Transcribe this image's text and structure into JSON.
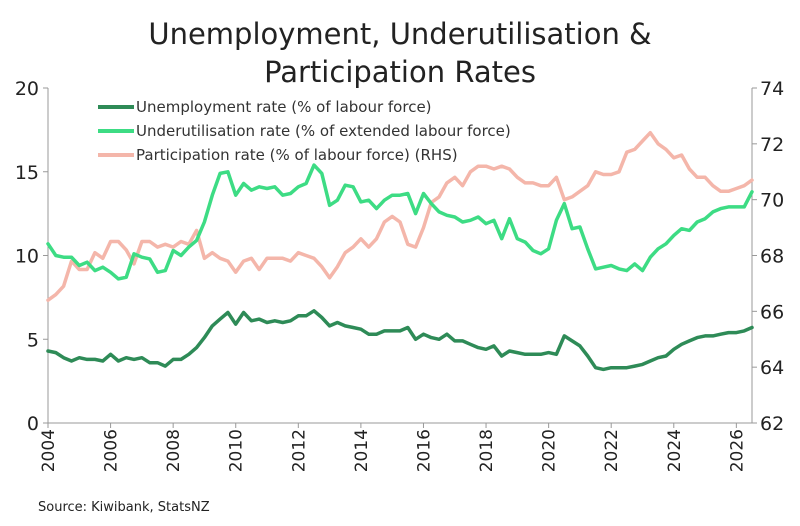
{
  "chart_data": {
    "type": "line",
    "title_lines": [
      "Unemployment, Underutilisation &",
      "Participation Rates"
    ],
    "source": "Source:  Kiwibank, StatsNZ",
    "x_ticks": [
      "2004",
      "2006",
      "2008",
      "2010",
      "2012",
      "2014",
      "2016",
      "2018",
      "2020",
      "2022",
      "2024",
      "2026"
    ],
    "xlim": [
      2004,
      2026.5
    ],
    "y_left": {
      "lim": [
        0,
        20
      ],
      "ticks": [
        "0",
        "5",
        "10",
        "15",
        "20"
      ]
    },
    "y_right": {
      "lim": [
        62,
        74
      ],
      "ticks": [
        "62",
        "64",
        "66",
        "68",
        "70",
        "72",
        "74"
      ]
    },
    "grid": false,
    "legend_position": "top-left",
    "series": [
      {
        "name": "Unemployment rate (% of labour force)",
        "color": "#2e8b57",
        "axis": "left",
        "points": [
          [
            2004.0,
            4.3
          ],
          [
            2004.25,
            4.2
          ],
          [
            2004.5,
            3.9
          ],
          [
            2004.75,
            3.7
          ],
          [
            2005.0,
            3.9
          ],
          [
            2005.25,
            3.8
          ],
          [
            2005.5,
            3.8
          ],
          [
            2005.75,
            3.7
          ],
          [
            2006.0,
            4.1
          ],
          [
            2006.25,
            3.7
          ],
          [
            2006.5,
            3.9
          ],
          [
            2006.75,
            3.8
          ],
          [
            2007.0,
            3.9
          ],
          [
            2007.25,
            3.6
          ],
          [
            2007.5,
            3.6
          ],
          [
            2007.75,
            3.4
          ],
          [
            2008.0,
            3.8
          ],
          [
            2008.25,
            3.8
          ],
          [
            2008.5,
            4.1
          ],
          [
            2008.75,
            4.5
          ],
          [
            2009.0,
            5.1
          ],
          [
            2009.25,
            5.8
          ],
          [
            2009.5,
            6.2
          ],
          [
            2009.75,
            6.6
          ],
          [
            2010.0,
            5.9
          ],
          [
            2010.25,
            6.6
          ],
          [
            2010.5,
            6.1
          ],
          [
            2010.75,
            6.2
          ],
          [
            2011.0,
            6.0
          ],
          [
            2011.25,
            6.1
          ],
          [
            2011.5,
            6.0
          ],
          [
            2011.75,
            6.1
          ],
          [
            2012.0,
            6.4
          ],
          [
            2012.25,
            6.4
          ],
          [
            2012.5,
            6.7
          ],
          [
            2012.75,
            6.3
          ],
          [
            2013.0,
            5.8
          ],
          [
            2013.25,
            6.0
          ],
          [
            2013.5,
            5.8
          ],
          [
            2013.75,
            5.7
          ],
          [
            2014.0,
            5.6
          ],
          [
            2014.25,
            5.3
          ],
          [
            2014.5,
            5.3
          ],
          [
            2014.75,
            5.5
          ],
          [
            2015.0,
            5.5
          ],
          [
            2015.25,
            5.5
          ],
          [
            2015.5,
            5.7
          ],
          [
            2015.75,
            5.0
          ],
          [
            2016.0,
            5.3
          ],
          [
            2016.25,
            5.1
          ],
          [
            2016.5,
            5.0
          ],
          [
            2016.75,
            5.3
          ],
          [
            2017.0,
            4.9
          ],
          [
            2017.25,
            4.9
          ],
          [
            2017.5,
            4.7
          ],
          [
            2017.75,
            4.5
          ],
          [
            2018.0,
            4.4
          ],
          [
            2018.25,
            4.6
          ],
          [
            2018.5,
            4.0
          ],
          [
            2018.75,
            4.3
          ],
          [
            2019.0,
            4.2
          ],
          [
            2019.25,
            4.1
          ],
          [
            2019.5,
            4.1
          ],
          [
            2019.75,
            4.1
          ],
          [
            2020.0,
            4.2
          ],
          [
            2020.25,
            4.1
          ],
          [
            2020.5,
            5.2
          ],
          [
            2020.75,
            4.9
          ],
          [
            2021.0,
            4.6
          ],
          [
            2021.25,
            4.0
          ],
          [
            2021.5,
            3.3
          ],
          [
            2021.75,
            3.2
          ],
          [
            2022.0,
            3.3
          ],
          [
            2022.25,
            3.3
          ],
          [
            2022.5,
            3.3
          ],
          [
            2022.75,
            3.4
          ],
          [
            2023.0,
            3.5
          ],
          [
            2023.25,
            3.7
          ],
          [
            2023.5,
            3.9
          ],
          [
            2023.75,
            4.0
          ],
          [
            2024.0,
            4.4
          ],
          [
            2024.25,
            4.7
          ],
          [
            2024.5,
            4.9
          ],
          [
            2024.75,
            5.1
          ],
          [
            2025.0,
            5.2
          ],
          [
            2025.25,
            5.2
          ],
          [
            2025.5,
            5.3
          ],
          [
            2025.75,
            5.4
          ],
          [
            2026.0,
            5.4
          ],
          [
            2026.25,
            5.5
          ],
          [
            2026.5,
            5.7
          ]
        ]
      },
      {
        "name": "Underutilisation rate (% of extended labour force)",
        "color": "#3ddc84",
        "axis": "left",
        "points": [
          [
            2004.0,
            10.7
          ],
          [
            2004.25,
            10.0
          ],
          [
            2004.5,
            9.9
          ],
          [
            2004.75,
            9.9
          ],
          [
            2005.0,
            9.4
          ],
          [
            2005.25,
            9.6
          ],
          [
            2005.5,
            9.1
          ],
          [
            2005.75,
            9.3
          ],
          [
            2006.0,
            9.0
          ],
          [
            2006.25,
            8.6
          ],
          [
            2006.5,
            8.7
          ],
          [
            2006.75,
            10.1
          ],
          [
            2007.0,
            9.9
          ],
          [
            2007.25,
            9.8
          ],
          [
            2007.5,
            9.0
          ],
          [
            2007.75,
            9.1
          ],
          [
            2008.0,
            10.3
          ],
          [
            2008.25,
            10.0
          ],
          [
            2008.5,
            10.5
          ],
          [
            2008.75,
            10.9
          ],
          [
            2009.0,
            12.0
          ],
          [
            2009.25,
            13.6
          ],
          [
            2009.5,
            14.9
          ],
          [
            2009.75,
            15.0
          ],
          [
            2010.0,
            13.6
          ],
          [
            2010.25,
            14.3
          ],
          [
            2010.5,
            13.9
          ],
          [
            2010.75,
            14.1
          ],
          [
            2011.0,
            14.0
          ],
          [
            2011.25,
            14.1
          ],
          [
            2011.5,
            13.6
          ],
          [
            2011.75,
            13.7
          ],
          [
            2012.0,
            14.1
          ],
          [
            2012.25,
            14.3
          ],
          [
            2012.5,
            15.4
          ],
          [
            2012.75,
            14.9
          ],
          [
            2013.0,
            13.0
          ],
          [
            2013.25,
            13.3
          ],
          [
            2013.5,
            14.2
          ],
          [
            2013.75,
            14.1
          ],
          [
            2014.0,
            13.2
          ],
          [
            2014.25,
            13.3
          ],
          [
            2014.5,
            12.8
          ],
          [
            2014.75,
            13.3
          ],
          [
            2015.0,
            13.6
          ],
          [
            2015.25,
            13.6
          ],
          [
            2015.5,
            13.7
          ],
          [
            2015.75,
            12.5
          ],
          [
            2016.0,
            13.7
          ],
          [
            2016.25,
            13.1
          ],
          [
            2016.5,
            12.6
          ],
          [
            2016.75,
            12.4
          ],
          [
            2017.0,
            12.3
          ],
          [
            2017.25,
            12.0
          ],
          [
            2017.5,
            12.1
          ],
          [
            2017.75,
            12.3
          ],
          [
            2018.0,
            11.9
          ],
          [
            2018.25,
            12.1
          ],
          [
            2018.5,
            11.0
          ],
          [
            2018.75,
            12.2
          ],
          [
            2019.0,
            11.0
          ],
          [
            2019.25,
            10.8
          ],
          [
            2019.5,
            10.3
          ],
          [
            2019.75,
            10.1
          ],
          [
            2020.0,
            10.4
          ],
          [
            2020.25,
            12.1
          ],
          [
            2020.5,
            13.1
          ],
          [
            2020.75,
            11.6
          ],
          [
            2021.0,
            11.7
          ],
          [
            2021.25,
            10.4
          ],
          [
            2021.5,
            9.2
          ],
          [
            2021.75,
            9.3
          ],
          [
            2022.0,
            9.4
          ],
          [
            2022.25,
            9.2
          ],
          [
            2022.5,
            9.1
          ],
          [
            2022.75,
            9.5
          ],
          [
            2023.0,
            9.1
          ],
          [
            2023.25,
            9.9
          ],
          [
            2023.5,
            10.4
          ],
          [
            2023.75,
            10.7
          ],
          [
            2024.0,
            11.2
          ],
          [
            2024.25,
            11.6
          ],
          [
            2024.5,
            11.5
          ],
          [
            2024.75,
            12.0
          ],
          [
            2025.0,
            12.2
          ],
          [
            2025.25,
            12.6
          ],
          [
            2025.5,
            12.8
          ],
          [
            2025.75,
            12.9
          ],
          [
            2026.0,
            12.9
          ],
          [
            2026.25,
            12.9
          ],
          [
            2026.5,
            13.8
          ]
        ]
      },
      {
        "name": "Participation rate (% of labour force) (RHS)",
        "color": "#f4b6aa",
        "axis": "right",
        "points": [
          [
            2004.0,
            66.4
          ],
          [
            2004.25,
            66.6
          ],
          [
            2004.5,
            66.9
          ],
          [
            2004.75,
            67.8
          ],
          [
            2005.0,
            67.5
          ],
          [
            2005.25,
            67.5
          ],
          [
            2005.5,
            68.1
          ],
          [
            2005.75,
            67.9
          ],
          [
            2006.0,
            68.5
          ],
          [
            2006.25,
            68.5
          ],
          [
            2006.5,
            68.2
          ],
          [
            2006.75,
            67.7
          ],
          [
            2007.0,
            68.5
          ],
          [
            2007.25,
            68.5
          ],
          [
            2007.5,
            68.3
          ],
          [
            2007.75,
            68.4
          ],
          [
            2008.0,
            68.3
          ],
          [
            2008.25,
            68.5
          ],
          [
            2008.5,
            68.4
          ],
          [
            2008.75,
            68.9
          ],
          [
            2009.0,
            67.9
          ],
          [
            2009.25,
            68.1
          ],
          [
            2009.5,
            67.9
          ],
          [
            2009.75,
            67.8
          ],
          [
            2010.0,
            67.4
          ],
          [
            2010.25,
            67.8
          ],
          [
            2010.5,
            67.9
          ],
          [
            2010.75,
            67.5
          ],
          [
            2011.0,
            67.9
          ],
          [
            2011.25,
            67.9
          ],
          [
            2011.5,
            67.9
          ],
          [
            2011.75,
            67.8
          ],
          [
            2012.0,
            68.1
          ],
          [
            2012.25,
            68.0
          ],
          [
            2012.5,
            67.9
          ],
          [
            2012.75,
            67.6
          ],
          [
            2013.0,
            67.2
          ],
          [
            2013.25,
            67.6
          ],
          [
            2013.5,
            68.1
          ],
          [
            2013.75,
            68.3
          ],
          [
            2014.0,
            68.6
          ],
          [
            2014.25,
            68.3
          ],
          [
            2014.5,
            68.6
          ],
          [
            2014.75,
            69.2
          ],
          [
            2015.0,
            69.4
          ],
          [
            2015.25,
            69.2
          ],
          [
            2015.5,
            68.4
          ],
          [
            2015.75,
            68.3
          ],
          [
            2016.0,
            69.0
          ],
          [
            2016.25,
            69.9
          ],
          [
            2016.5,
            70.1
          ],
          [
            2016.75,
            70.6
          ],
          [
            2017.0,
            70.8
          ],
          [
            2017.25,
            70.5
          ],
          [
            2017.5,
            71.0
          ],
          [
            2017.75,
            71.2
          ],
          [
            2018.0,
            71.2
          ],
          [
            2018.25,
            71.1
          ],
          [
            2018.5,
            71.2
          ],
          [
            2018.75,
            71.1
          ],
          [
            2019.0,
            70.8
          ],
          [
            2019.25,
            70.6
          ],
          [
            2019.5,
            70.6
          ],
          [
            2019.75,
            70.5
          ],
          [
            2020.0,
            70.5
          ],
          [
            2020.25,
            70.8
          ],
          [
            2020.5,
            70.0
          ],
          [
            2020.75,
            70.1
          ],
          [
            2021.0,
            70.3
          ],
          [
            2021.25,
            70.5
          ],
          [
            2021.5,
            71.0
          ],
          [
            2021.75,
            70.9
          ],
          [
            2022.0,
            70.9
          ],
          [
            2022.25,
            71.0
          ],
          [
            2022.5,
            71.7
          ],
          [
            2022.75,
            71.8
          ],
          [
            2023.0,
            72.1
          ],
          [
            2023.25,
            72.4
          ],
          [
            2023.5,
            72.0
          ],
          [
            2023.75,
            71.8
          ],
          [
            2024.0,
            71.5
          ],
          [
            2024.25,
            71.6
          ],
          [
            2024.5,
            71.1
          ],
          [
            2024.75,
            70.8
          ],
          [
            2025.0,
            70.8
          ],
          [
            2025.25,
            70.5
          ],
          [
            2025.5,
            70.3
          ],
          [
            2025.75,
            70.3
          ],
          [
            2026.0,
            70.4
          ],
          [
            2026.25,
            70.5
          ],
          [
            2026.5,
            70.7
          ]
        ]
      }
    ]
  }
}
